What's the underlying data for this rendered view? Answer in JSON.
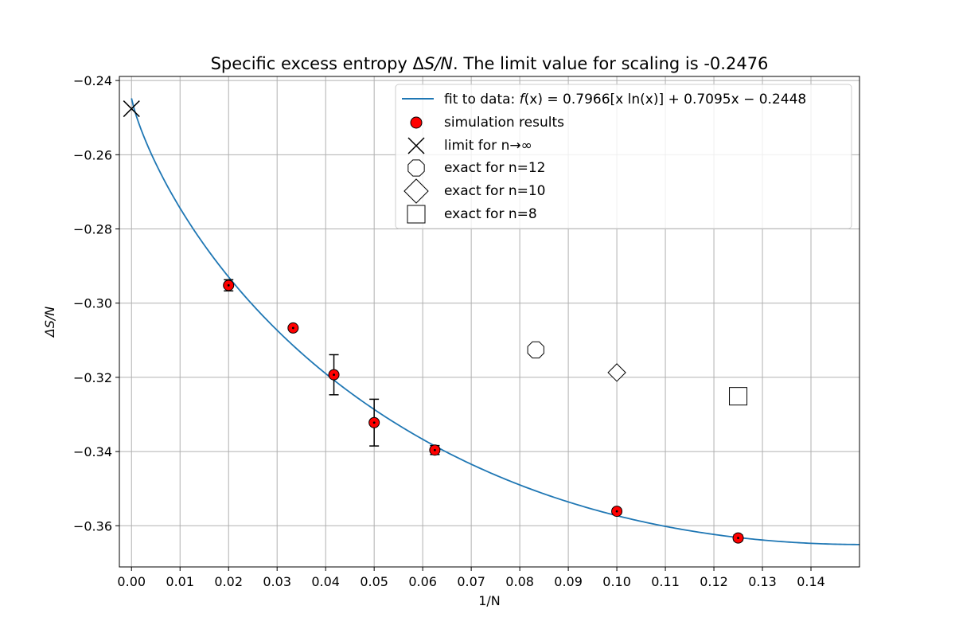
{
  "chart_data": {
    "type": "scatter",
    "title": "Specific excess entropy ΔS/N.  The limit value for scaling is -0.2476",
    "xlabel": "1/N",
    "ylabel": "ΔS/N",
    "xlim": [
      -0.0025,
      0.15
    ],
    "ylim": [
      -0.3711,
      -0.2389
    ],
    "x_ticks": [
      0.0,
      0.01,
      0.02,
      0.03,
      0.04,
      0.05,
      0.06,
      0.07,
      0.08,
      0.09,
      0.1,
      0.11,
      0.12,
      0.13,
      0.14
    ],
    "x_tick_labels": [
      "0.00",
      "0.01",
      "0.02",
      "0.03",
      "0.04",
      "0.05",
      "0.06",
      "0.07",
      "0.08",
      "0.09",
      "0.10",
      "0.11",
      "0.12",
      "0.13",
      "0.14"
    ],
    "y_ticks": [
      -0.24,
      -0.26,
      -0.28,
      -0.3,
      -0.32,
      -0.34,
      -0.36
    ],
    "y_tick_labels": [
      "−0.24",
      "−0.26",
      "−0.28",
      "−0.30",
      "−0.32",
      "−0.34",
      "−0.36"
    ],
    "grid": true,
    "legend_position": "top-right",
    "fit": {
      "name": " fit to data: f(x) = 0.7966[x ln(x)] + 0.7095x − 0.2448",
      "a": 0.7966,
      "b": 0.7095,
      "c": -0.2448,
      "x_range": [
        0.0,
        0.15
      ],
      "color": "#1f77b4"
    },
    "simulation": {
      "name": "simulation results",
      "color": "#ff0000",
      "points": [
        {
          "x": 0.02,
          "y": -0.2952,
          "err": 0.0015
        },
        {
          "x": 0.0333,
          "y": -0.3067,
          "err": 0.0
        },
        {
          "x": 0.0417,
          "y": -0.3193,
          "err": 0.0054
        },
        {
          "x": 0.05,
          "y": -0.3322,
          "err": 0.0063
        },
        {
          "x": 0.0625,
          "y": -0.3396,
          "err": 0.0012
        },
        {
          "x": 0.1,
          "y": -0.3561,
          "err": 0.0007
        },
        {
          "x": 0.125,
          "y": -0.3633,
          "err": 0.0008
        }
      ]
    },
    "limit": {
      "name": "limit for n→∞",
      "x": 0.0,
      "y": -0.2476
    },
    "exact": [
      {
        "name": "exact for n=12",
        "marker": "octagon",
        "x": 0.0833,
        "y": -0.3126
      },
      {
        "name": "exact for  n=10",
        "marker": "diamond",
        "x": 0.1,
        "y": -0.3187
      },
      {
        "name": "exact for  n=8",
        "marker": "square",
        "x": 0.125,
        "y": -0.3251
      }
    ]
  }
}
